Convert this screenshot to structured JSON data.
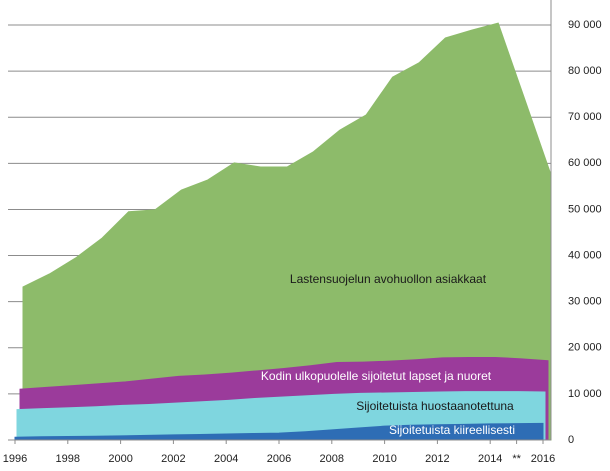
{
  "chart_data": {
    "type": "area",
    "x": [
      1996,
      1997,
      1998,
      1999,
      2000,
      2001,
      2002,
      2003,
      2004,
      2005,
      2006,
      2007,
      2008,
      2009,
      2010,
      2011,
      2012,
      2013,
      2014,
      2015,
      2016
    ],
    "series": [
      {
        "name": "Lastensuojelun avohuollon asiakkaat",
        "color": "#8dbb6a",
        "values": [
          33200,
          36000,
          39500,
          43800,
          49500,
          49900,
          54200,
          56400,
          60100,
          59200,
          59200,
          62500,
          67200,
          70500,
          78700,
          81800,
          87200,
          88900,
          90400,
          74000,
          57500
        ]
      },
      {
        "name": "Kodin ulkopuolelle sijoitetut lapset ja nuoret",
        "color": "#9b3b9b",
        "values": [
          11000,
          11400,
          11800,
          12200,
          12600,
          13200,
          13800,
          14100,
          14500,
          15000,
          15500,
          16100,
          16800,
          16900,
          17100,
          17400,
          17800,
          17900,
          17900,
          17600,
          17200
        ]
      },
      {
        "name": "Sijoitetuista huostaanotettuna",
        "color": "#7fd6df",
        "values": [
          6600,
          6800,
          7000,
          7200,
          7500,
          7700,
          8000,
          8300,
          8600,
          9000,
          9300,
          9600,
          9900,
          10100,
          10200,
          10300,
          10400,
          10500,
          10500,
          10500,
          10400
        ]
      },
      {
        "name": "Sijoitetuista kiireellisesti",
        "color": "#2e6db5",
        "values": [
          600,
          700,
          750,
          800,
          900,
          1000,
          1100,
          1200,
          1300,
          1400,
          1500,
          1800,
          2200,
          2600,
          3000,
          3200,
          3300,
          3400,
          3500,
          3550,
          3600
        ]
      }
    ],
    "xlim": [
      1996,
      2016
    ],
    "xticks": [
      1996,
      1998,
      2000,
      2002,
      2004,
      2006,
      2008,
      2010,
      2012,
      2014,
      {
        "value": 2015,
        "label": "**"
      },
      2016
    ],
    "ylim": [
      0,
      90000
    ],
    "yticks": [
      0,
      {
        "value": 10000,
        "label": "10 000"
      },
      {
        "value": 20000,
        "label": "20 000"
      },
      {
        "value": 30000,
        "label": "30 000"
      },
      {
        "value": 40000,
        "label": "40 000"
      },
      {
        "value": 50000,
        "label": "50 000"
      },
      {
        "value": 60000,
        "label": "60 000"
      },
      {
        "value": 70000,
        "label": "70 000"
      },
      {
        "value": 80000,
        "label": "80 000"
      },
      {
        "value": 90000,
        "label": "90 000"
      }
    ],
    "grid": true,
    "y_axis_side": "right"
  }
}
